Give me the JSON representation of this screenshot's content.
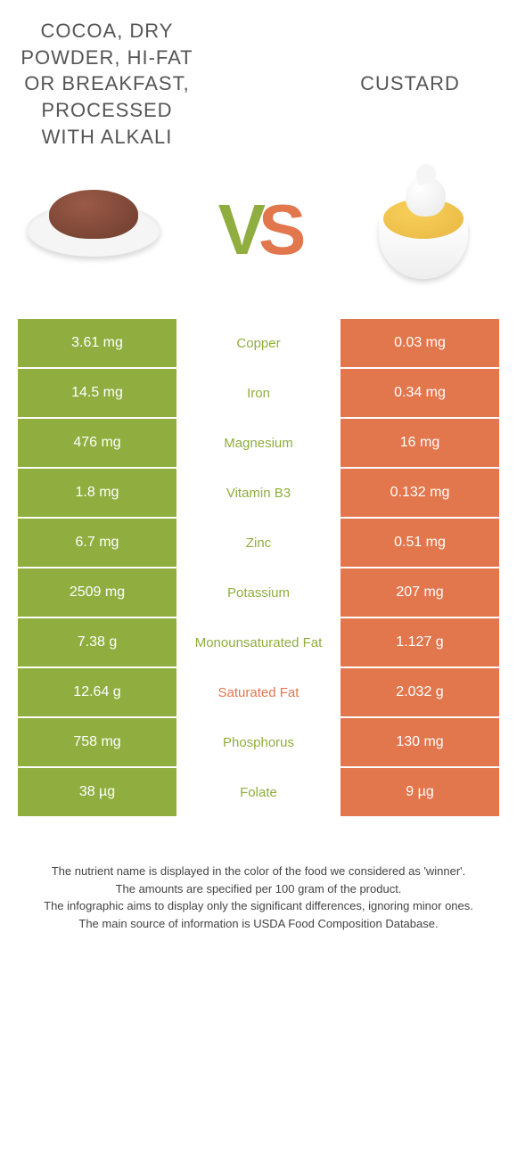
{
  "header": {
    "left_title": "COCOA, DRY POWDER, HI-FAT OR BREAKFAST, PROCESSED WITH ALKALI",
    "right_title": "CUSTARD",
    "vs_v": "V",
    "vs_s": "S"
  },
  "colors": {
    "left": "#8fae3f",
    "right": "#e2764d",
    "background": "#ffffff"
  },
  "rows": [
    {
      "nutrient": "Copper",
      "left": "3.61 mg",
      "right": "0.03 mg",
      "winner": "left"
    },
    {
      "nutrient": "Iron",
      "left": "14.5 mg",
      "right": "0.34 mg",
      "winner": "left"
    },
    {
      "nutrient": "Magnesium",
      "left": "476 mg",
      "right": "16 mg",
      "winner": "left"
    },
    {
      "nutrient": "Vitamin B3",
      "left": "1.8 mg",
      "right": "0.132 mg",
      "winner": "left"
    },
    {
      "nutrient": "Zinc",
      "left": "6.7 mg",
      "right": "0.51 mg",
      "winner": "left"
    },
    {
      "nutrient": "Potassium",
      "left": "2509 mg",
      "right": "207 mg",
      "winner": "left"
    },
    {
      "nutrient": "Monounsaturated Fat",
      "left": "7.38 g",
      "right": "1.127 g",
      "winner": "left"
    },
    {
      "nutrient": "Saturated Fat",
      "left": "12.64 g",
      "right": "2.032 g",
      "winner": "right"
    },
    {
      "nutrient": "Phosphorus",
      "left": "758 mg",
      "right": "130 mg",
      "winner": "left"
    },
    {
      "nutrient": "Folate",
      "left": "38 µg",
      "right": "9 µg",
      "winner": "left"
    }
  ],
  "footer": {
    "line1": "The nutrient name is displayed in the color of the food we considered as 'winner'.",
    "line2": "The amounts are specified per 100 gram of the product.",
    "line3": "The infographic aims to display only the significant differences, ignoring minor ones.",
    "line4": "The main source of information is USDA Food Composition Database."
  }
}
